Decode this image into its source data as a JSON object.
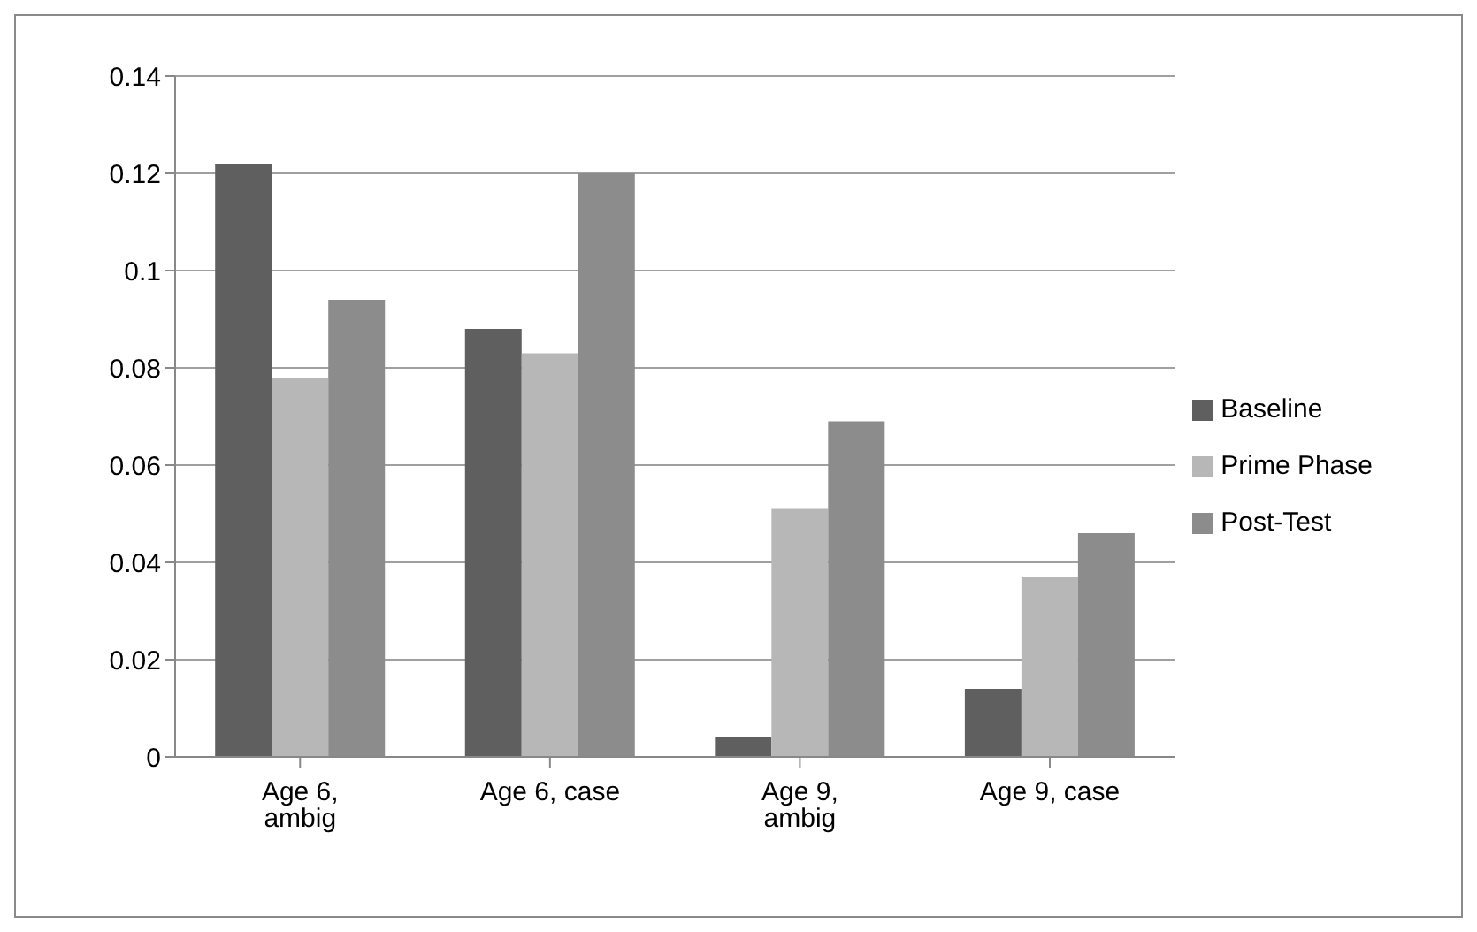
{
  "chart_data": {
    "type": "bar",
    "categories": [
      "Age 6, ambig",
      "Age 6, case",
      "Age 9, ambig",
      "Age 9, case"
    ],
    "series": [
      {
        "name": "Baseline",
        "color": "#5f5f5f",
        "values": [
          0.122,
          0.088,
          0.004,
          0.014
        ]
      },
      {
        "name": "Prime Phase",
        "color": "#b7b7b7",
        "values": [
          0.078,
          0.083,
          0.051,
          0.037
        ]
      },
      {
        "name": "Post-Test",
        "color": "#8c8c8c",
        "values": [
          0.094,
          0.12,
          0.069,
          0.046
        ]
      }
    ],
    "ylim": [
      0,
      0.14
    ],
    "yticks": [
      0,
      0.02,
      0.04,
      0.06,
      0.08,
      0.1,
      0.12,
      0.14
    ],
    "grid": "y",
    "legend": "right"
  }
}
